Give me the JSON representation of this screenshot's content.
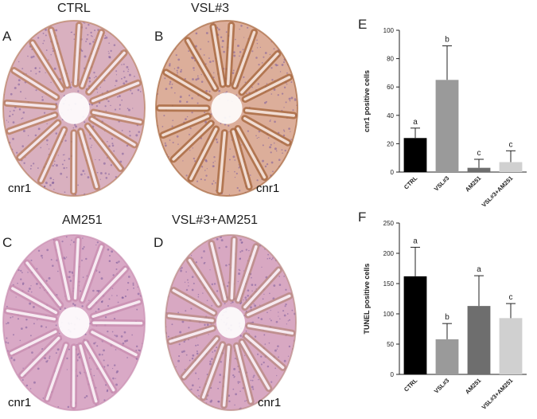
{
  "panels": [
    {
      "letter": "A",
      "title": "CTRL",
      "stain": "cnr1",
      "tint": "brown-medium"
    },
    {
      "letter": "B",
      "title": "VSL#3",
      "stain": "cnr1",
      "tint": "brown-strong"
    },
    {
      "letter": "C",
      "title": "AM251",
      "stain": "cnr1",
      "tint": "pink"
    },
    {
      "letter": "D",
      "title": "VSL#3+AM251",
      "stain": "cnr1",
      "tint": "pink-light-brown"
    }
  ],
  "colors": {
    "ctrl": "#000000",
    "vsl3": "#9a9a9a",
    "am251": "#6e6e6e",
    "vsl3_am251": "#d0d0d0",
    "tissue_pink": "#d7a9c4",
    "tissue_brown": "#b57a50",
    "nuclei": "#7b5b9a"
  },
  "chart_data": [
    {
      "letter": "E",
      "type": "bar",
      "categories": [
        "CTRL",
        "VSL#3",
        "AM251",
        "VSL#3+AM251"
      ],
      "values": [
        24,
        65,
        3,
        7
      ],
      "errors": [
        7,
        24,
        6,
        8
      ],
      "significance": [
        "a",
        "b",
        "c",
        "c"
      ],
      "ylabel": "cnr1 positive cells",
      "ylim": [
        0,
        100
      ],
      "yticks": [
        0,
        20,
        40,
        60,
        80,
        100
      ],
      "bar_colors": [
        "#000000",
        "#9a9a9a",
        "#6e6e6e",
        "#d0d0d0"
      ]
    },
    {
      "letter": "F",
      "type": "bar",
      "categories": [
        "CTRL",
        "VSL#3",
        "AM251",
        "VSL#3+AM251"
      ],
      "values": [
        162,
        58,
        113,
        93
      ],
      "errors": [
        48,
        26,
        50,
        24
      ],
      "significance": [
        "a",
        "b",
        "a",
        "c"
      ],
      "ylabel": "TUNEL positive cells",
      "ylim": [
        0,
        250
      ],
      "yticks": [
        0,
        50,
        100,
        150,
        200,
        250
      ],
      "bar_colors": [
        "#000000",
        "#9a9a9a",
        "#6e6e6e",
        "#d0d0d0"
      ]
    }
  ]
}
